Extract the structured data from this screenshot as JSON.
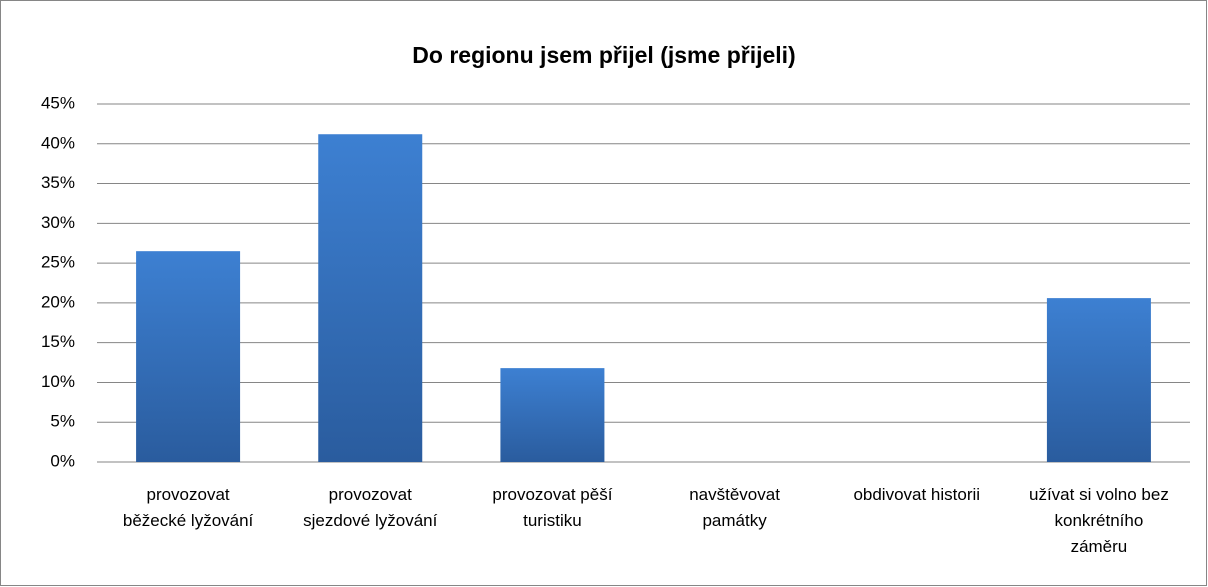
{
  "chart_data": {
    "type": "bar",
    "title": "Do regionu jsem přijel (jsme přijeli)",
    "categories": [
      "provozovat běžecké lyžování",
      "provozovat sjezdové lyžování",
      "provozovat pěší turistiku",
      "navštěvovat památky",
      "obdivovat historii",
      "užívat si volno bez konkrétního záměru"
    ],
    "values": [
      26.5,
      41.2,
      11.8,
      0,
      0,
      20.6
    ],
    "color": "#3a78c6",
    "ylim": [
      0,
      45
    ],
    "yticks": [
      {
        "value": 0,
        "label": "0%"
      },
      {
        "value": 5,
        "label": "5%"
      },
      {
        "value": 10,
        "label": "10%"
      },
      {
        "value": 15,
        "label": "15%"
      },
      {
        "value": 20,
        "label": "20%"
      },
      {
        "value": 25,
        "label": "25%"
      },
      {
        "value": 30,
        "label": "30%"
      },
      {
        "value": 35,
        "label": "35%"
      },
      {
        "value": 40,
        "label": "40%"
      },
      {
        "value": 45,
        "label": "45%"
      }
    ],
    "grid": true
  }
}
